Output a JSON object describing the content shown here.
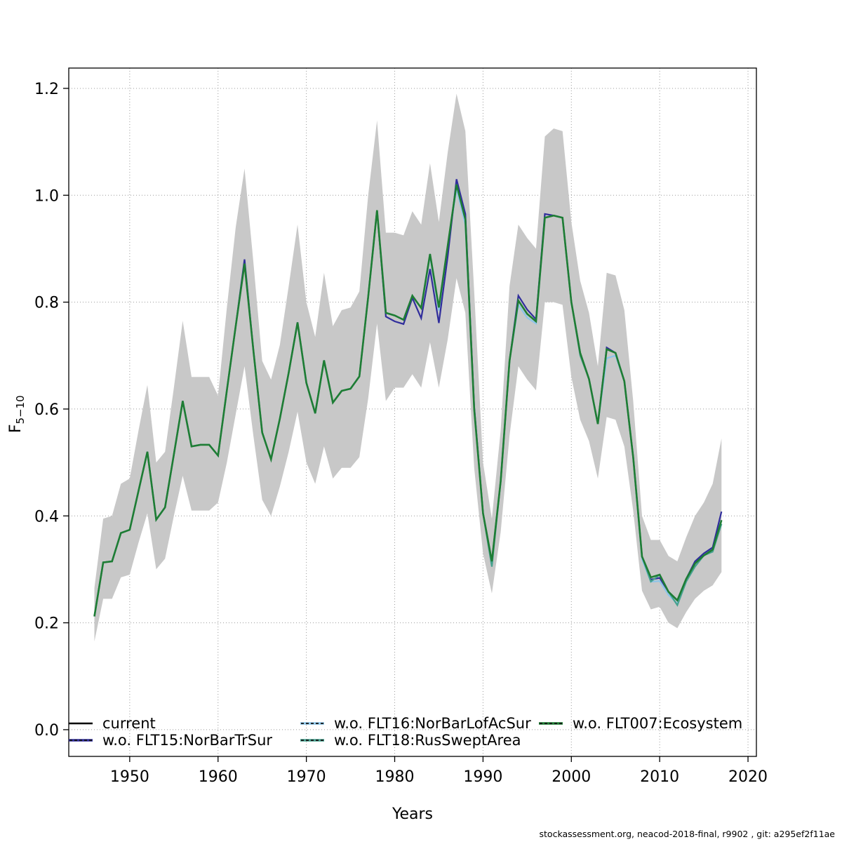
{
  "page": {
    "background": "#ffffff"
  },
  "caption": "stockassessment.org, neacod-2018-final, r9902 , git: a295ef2f11ae",
  "chart_data": {
    "type": "line",
    "title": "",
    "xlabel": "Years",
    "ylabel": "F",
    "ylabel_subscript": "5−10",
    "grid": true,
    "grid_color": "#9b9b9b",
    "axis_color": "#000000",
    "xlim": [
      1943.1,
      2020.95
    ],
    "ylim": [
      -0.05,
      1.238
    ],
    "x_ticks": [
      1950,
      1960,
      1970,
      1980,
      1990,
      2000,
      2010,
      2020
    ],
    "y_ticks": [
      "0.0",
      "0.2",
      "0.4",
      "0.6",
      "0.8",
      "1.0",
      "1.2"
    ],
    "years": [
      1946,
      1947,
      1948,
      1949,
      1950,
      1951,
      1952,
      1953,
      1954,
      1955,
      1956,
      1957,
      1958,
      1959,
      1960,
      1961,
      1962,
      1963,
      1964,
      1965,
      1966,
      1967,
      1968,
      1969,
      1970,
      1971,
      1972,
      1973,
      1974,
      1975,
      1976,
      1977,
      1978,
      1979,
      1980,
      1981,
      1982,
      1983,
      1984,
      1985,
      1986,
      1987,
      1988,
      1989,
      1990,
      1991,
      1992,
      1993,
      1994,
      1995,
      1996,
      1997,
      1998,
      1999,
      2000,
      2001,
      2002,
      2003,
      2004,
      2005,
      2006,
      2007,
      2008,
      2009,
      2010,
      2011,
      2012,
      2013,
      2014,
      2015,
      2016,
      2017
    ],
    "band": {
      "name": "confidence-interval",
      "color": "#c8c8c8",
      "lower": [
        0.165,
        0.245,
        0.245,
        0.285,
        0.29,
        0.35,
        0.405,
        0.3,
        0.32,
        0.4,
        0.475,
        0.41,
        0.41,
        0.41,
        0.425,
        0.5,
        0.59,
        0.68,
        0.55,
        0.43,
        0.4,
        0.455,
        0.52,
        0.595,
        0.5,
        0.46,
        0.53,
        0.47,
        0.49,
        0.49,
        0.51,
        0.62,
        0.76,
        0.615,
        0.64,
        0.64,
        0.665,
        0.64,
        0.725,
        0.64,
        0.73,
        0.845,
        0.78,
        0.49,
        0.33,
        0.255,
        0.37,
        0.55,
        0.68,
        0.655,
        0.635,
        0.8,
        0.8,
        0.795,
        0.66,
        0.58,
        0.54,
        0.47,
        0.585,
        0.58,
        0.53,
        0.41,
        0.26,
        0.225,
        0.23,
        0.2,
        0.19,
        0.22,
        0.245,
        0.26,
        0.27,
        0.295
      ],
      "upper": [
        0.265,
        0.395,
        0.4,
        0.46,
        0.47,
        0.56,
        0.645,
        0.5,
        0.52,
        0.64,
        0.765,
        0.66,
        0.66,
        0.66,
        0.625,
        0.79,
        0.94,
        1.05,
        0.875,
        0.69,
        0.655,
        0.72,
        0.83,
        0.945,
        0.8,
        0.735,
        0.855,
        0.755,
        0.785,
        0.79,
        0.82,
        1.0,
        1.14,
        0.93,
        0.93,
        0.925,
        0.97,
        0.945,
        1.06,
        0.95,
        1.08,
        1.19,
        1.12,
        0.82,
        0.5,
        0.395,
        0.56,
        0.83,
        0.945,
        0.92,
        0.9,
        1.11,
        1.125,
        1.12,
        0.95,
        0.84,
        0.78,
        0.68,
        0.855,
        0.85,
        0.785,
        0.615,
        0.4,
        0.355,
        0.355,
        0.325,
        0.315,
        0.36,
        0.4,
        0.425,
        0.46,
        0.545
      ]
    },
    "series": [
      {
        "name": "current",
        "color": "#000000",
        "style": "solid",
        "width": 1.8,
        "values": [
          0.212,
          0.313,
          0.315,
          0.368,
          0.374,
          0.447,
          0.52,
          0.393,
          0.416,
          0.515,
          0.615,
          0.53,
          0.533,
          0.533,
          0.513,
          0.635,
          0.755,
          0.872,
          0.71,
          0.556,
          0.506,
          0.582,
          0.668,
          0.762,
          0.649,
          0.592,
          0.691,
          0.612,
          0.634,
          0.638,
          0.661,
          0.81,
          0.972,
          0.78,
          0.775,
          0.767,
          0.812,
          0.789,
          0.89,
          0.79,
          0.905,
          1.02,
          0.955,
          0.6,
          0.405,
          0.315,
          0.465,
          0.69,
          0.803,
          0.778,
          0.764,
          0.958,
          0.962,
          0.958,
          0.8,
          0.705,
          0.656,
          0.572,
          0.712,
          0.705,
          0.652,
          0.51,
          0.324,
          0.285,
          0.29,
          0.258,
          0.242,
          0.282,
          0.311,
          0.326,
          0.337,
          0.392
        ]
      },
      {
        "name": "w.o. FLT15:NorBarTrSur",
        "color": "#302d9c",
        "style": "dashed",
        "width": 2.2,
        "values": [
          0.212,
          0.313,
          0.315,
          0.368,
          0.374,
          0.447,
          0.52,
          0.393,
          0.416,
          0.515,
          0.615,
          0.53,
          0.533,
          0.533,
          0.513,
          0.635,
          0.755,
          0.88,
          0.71,
          0.556,
          0.506,
          0.582,
          0.668,
          0.762,
          0.649,
          0.592,
          0.691,
          0.612,
          0.634,
          0.638,
          0.661,
          0.81,
          0.972,
          0.773,
          0.764,
          0.759,
          0.808,
          0.77,
          0.862,
          0.761,
          0.885,
          1.03,
          0.965,
          0.605,
          0.405,
          0.315,
          0.465,
          0.69,
          0.812,
          0.786,
          0.768,
          0.965,
          0.962,
          0.958,
          0.8,
          0.705,
          0.656,
          0.572,
          0.715,
          0.705,
          0.652,
          0.51,
          0.324,
          0.281,
          0.284,
          0.258,
          0.242,
          0.282,
          0.315,
          0.33,
          0.341,
          0.408
        ]
      },
      {
        "name": "w.o. FLT16:NorBarLofAcSur",
        "color": "#8cc5ea",
        "style": "dotted",
        "width": 2.2,
        "values": [
          0.212,
          0.313,
          0.315,
          0.368,
          0.374,
          0.447,
          0.52,
          0.393,
          0.416,
          0.515,
          0.615,
          0.53,
          0.533,
          0.533,
          0.513,
          0.635,
          0.755,
          0.872,
          0.71,
          0.556,
          0.506,
          0.582,
          0.668,
          0.762,
          0.649,
          0.592,
          0.691,
          0.612,
          0.634,
          0.638,
          0.661,
          0.81,
          0.972,
          0.78,
          0.775,
          0.767,
          0.812,
          0.789,
          0.886,
          0.784,
          0.905,
          1.012,
          0.945,
          0.6,
          0.405,
          0.31,
          0.465,
          0.69,
          0.795,
          0.771,
          0.76,
          0.958,
          0.962,
          0.958,
          0.8,
          0.705,
          0.656,
          0.572,
          0.695,
          0.7,
          0.652,
          0.51,
          0.319,
          0.277,
          0.278,
          0.252,
          0.236,
          0.277,
          0.311,
          0.326,
          0.337,
          0.385
        ]
      },
      {
        "name": "w.o. FLT18:RusSweptArea",
        "color": "#45a18e",
        "style": "dashed",
        "width": 2.2,
        "values": [
          0.212,
          0.313,
          0.315,
          0.368,
          0.374,
          0.447,
          0.52,
          0.393,
          0.416,
          0.515,
          0.615,
          0.53,
          0.533,
          0.533,
          0.513,
          0.635,
          0.755,
          0.872,
          0.71,
          0.556,
          0.506,
          0.582,
          0.668,
          0.762,
          0.649,
          0.592,
          0.691,
          0.612,
          0.634,
          0.638,
          0.661,
          0.81,
          0.972,
          0.78,
          0.775,
          0.767,
          0.812,
          0.789,
          0.89,
          0.79,
          0.905,
          1.02,
          0.955,
          0.6,
          0.405,
          0.305,
          0.465,
          0.69,
          0.803,
          0.778,
          0.764,
          0.958,
          0.962,
          0.958,
          0.8,
          0.7,
          0.656,
          0.572,
          0.712,
          0.705,
          0.652,
          0.51,
          0.324,
          0.277,
          0.29,
          0.258,
          0.233,
          0.277,
          0.305,
          0.326,
          0.333,
          0.385
        ]
      },
      {
        "name": "w.o. FLT007:Ecosystem",
        "color": "#1e7d34",
        "style": "dashed",
        "width": 2.6,
        "values": [
          0.212,
          0.313,
          0.315,
          0.368,
          0.374,
          0.447,
          0.52,
          0.393,
          0.416,
          0.515,
          0.615,
          0.53,
          0.533,
          0.533,
          0.513,
          0.635,
          0.755,
          0.872,
          0.71,
          0.556,
          0.506,
          0.582,
          0.668,
          0.762,
          0.649,
          0.592,
          0.691,
          0.612,
          0.634,
          0.638,
          0.661,
          0.81,
          0.972,
          0.78,
          0.775,
          0.767,
          0.812,
          0.789,
          0.89,
          0.79,
          0.905,
          1.02,
          0.955,
          0.6,
          0.405,
          0.315,
          0.465,
          0.69,
          0.803,
          0.778,
          0.764,
          0.958,
          0.962,
          0.958,
          0.8,
          0.705,
          0.656,
          0.572,
          0.712,
          0.705,
          0.652,
          0.51,
          0.324,
          0.285,
          0.29,
          0.258,
          0.242,
          0.282,
          0.311,
          0.326,
          0.337,
          0.392
        ]
      }
    ],
    "legend": {
      "position": "inside-bottom-left",
      "rows": 2
    },
    "z_order": [
      2,
      1,
      0,
      3,
      4
    ]
  },
  "layout_note": ""
}
